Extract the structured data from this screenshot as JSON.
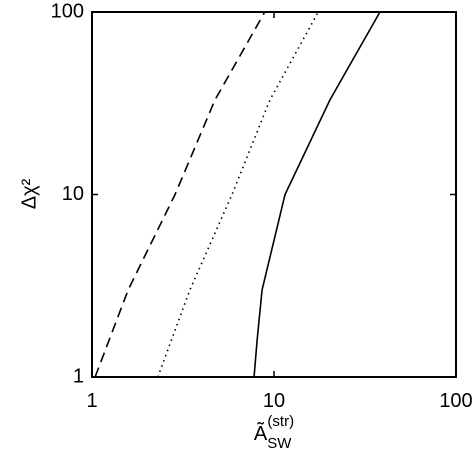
{
  "chart_data": {
    "type": "line",
    "xlabel": {
      "base": "Ã",
      "sub": "SW",
      "sup": "(str)"
    },
    "ylabel": "Δχ²",
    "xscale": "log",
    "yscale": "log",
    "xlim": [
      1,
      100
    ],
    "ylim": [
      1,
      100
    ],
    "xticks": [
      1,
      10,
      100
    ],
    "yticks": [
      1,
      10,
      100
    ],
    "series": [
      {
        "color": "#000000",
        "dash": "dashed",
        "x": [
          1.04,
          1.58,
          2.86,
          4.74,
          8.9
        ],
        "values": [
          1,
          3,
          10,
          33,
          100
        ]
      },
      {
        "color": "#000000",
        "dash": "dotted",
        "x": [
          2.3,
          3.45,
          5.88,
          9.5,
          17.5
        ],
        "values": [
          1,
          3,
          10,
          33,
          100
        ]
      },
      {
        "color": "#000000",
        "dash": "solid",
        "x": [
          7.77,
          8.08,
          8.6,
          11.5,
          20.3,
          38.2
        ],
        "values": [
          1,
          1.6,
          3,
          10,
          33,
          100
        ]
      }
    ]
  }
}
